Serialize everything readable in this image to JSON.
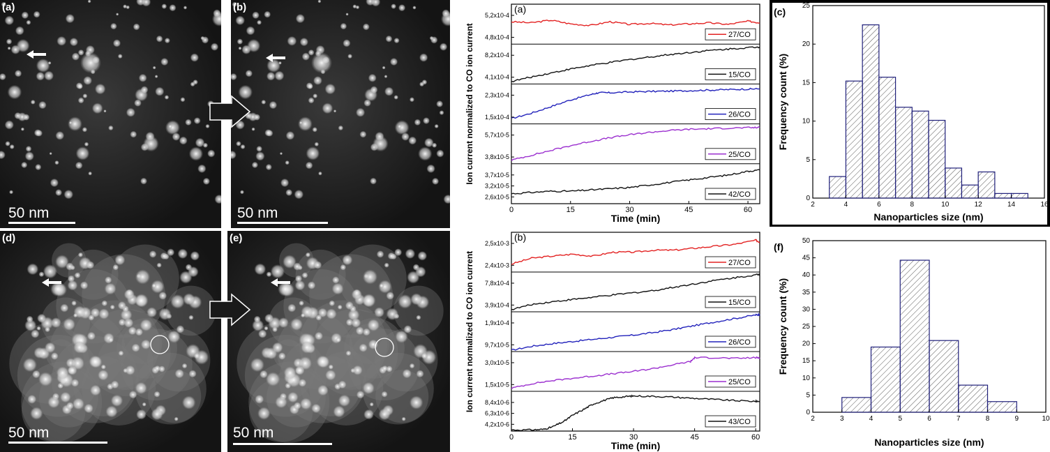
{
  "panels": {
    "a": {
      "label": "(a)",
      "scale": "50 nm"
    },
    "b": {
      "label": "(b)",
      "scale": "50 nm"
    },
    "d": {
      "label": "(d)",
      "scale": "50 nm"
    },
    "e": {
      "label": "(e)",
      "scale": "50 nm"
    }
  },
  "chart_data": [
    {
      "type": "line",
      "panel_label": "(a)",
      "xlabel": "Time (min)",
      "ylabel": "Ion current normalized to CO ion current",
      "xlim": [
        0,
        63
      ],
      "xticks": [
        "0",
        "15",
        "30",
        "45",
        "60"
      ],
      "series": [
        {
          "name": "27/CO",
          "color": "#e32222",
          "yticks": [
            "5,2x10-4",
            "4,8x10-4"
          ],
          "x": [
            0,
            5,
            10,
            15,
            20,
            25,
            30,
            35,
            40,
            45,
            50,
            55,
            60,
            63
          ],
          "y": [
            5.02,
            5.0,
            5.05,
            4.98,
            4.95,
            5.02,
            4.97,
            4.99,
            4.96,
            4.98,
            5.0,
            4.97,
            5.03,
            5.0
          ],
          "ylim": [
            4.6,
            5.35
          ]
        },
        {
          "name": "15/CO",
          "color": "#111111",
          "yticks": [
            "8,2x10-4",
            "4,1x10-4"
          ],
          "x": [
            0,
            5,
            10,
            15,
            20,
            25,
            30,
            35,
            40,
            45,
            50,
            55,
            60,
            63
          ],
          "y": [
            4.1,
            5.0,
            5.8,
            6.6,
            7.3,
            7.9,
            8.5,
            9.0,
            9.5,
            9.9,
            10.3,
            10.6,
            10.9,
            11.0
          ],
          "ylim": [
            3.6,
            11.6
          ]
        },
        {
          "name": "26/CO",
          "color": "#2222bb",
          "yticks": [
            "2,3x10-4",
            "1,5x10-4"
          ],
          "x": [
            0,
            5,
            10,
            15,
            20,
            22,
            25,
            30,
            35,
            40,
            45,
            50,
            55,
            60,
            63
          ],
          "y": [
            1.45,
            1.65,
            1.9,
            2.15,
            2.35,
            2.42,
            2.42,
            2.45,
            2.47,
            2.48,
            2.5,
            2.52,
            2.54,
            2.56,
            2.57
          ],
          "ylim": [
            1.25,
            2.75
          ]
        },
        {
          "name": "25/CO",
          "color": "#9b2fcf",
          "yticks": [
            "5,7x10-5",
            "3,8x10-5"
          ],
          "x": [
            0,
            5,
            10,
            15,
            20,
            25,
            30,
            35,
            40,
            45,
            50,
            55,
            60,
            63
          ],
          "y": [
            3.6,
            4.0,
            4.4,
            4.8,
            5.15,
            5.45,
            5.7,
            5.9,
            6.05,
            6.15,
            6.2,
            6.25,
            6.28,
            6.3
          ],
          "ylim": [
            3.3,
            6.6
          ]
        },
        {
          "name": "42/CO",
          "color": "#111111",
          "yticks": [
            "3,7x10-5",
            "3,2x10-5",
            "2,6x10-5"
          ],
          "x": [
            0,
            5,
            10,
            15,
            20,
            25,
            30,
            35,
            40,
            45,
            50,
            55,
            60,
            63
          ],
          "y": [
            2.9,
            2.95,
            3.0,
            3.0,
            3.05,
            3.1,
            3.15,
            3.25,
            3.35,
            3.45,
            3.55,
            3.65,
            3.8,
            3.85
          ],
          "ylim": [
            2.5,
            4.1
          ]
        }
      ]
    },
    {
      "type": "line",
      "panel_label": "(b)",
      "xlabel": "Time (min)",
      "ylabel": "Ion current normalized to CO ion current",
      "xlim": [
        0,
        61
      ],
      "xticks": [
        "0",
        "15",
        "30",
        "45",
        "60"
      ],
      "series": [
        {
          "name": "27/CO",
          "color": "#e32222",
          "yticks": [
            "2,5x10-3",
            "2,4x10-3"
          ],
          "x": [
            0,
            5,
            10,
            15,
            20,
            25,
            30,
            35,
            40,
            45,
            50,
            55,
            60,
            61
          ],
          "y": [
            2.4,
            2.43,
            2.44,
            2.45,
            2.44,
            2.46,
            2.46,
            2.47,
            2.47,
            2.48,
            2.49,
            2.5,
            2.52,
            2.51
          ],
          "ylim": [
            2.36,
            2.56
          ]
        },
        {
          "name": "15/CO",
          "color": "#111111",
          "yticks": [
            "7,8x10-4",
            "3,9x10-4"
          ],
          "x": [
            0,
            5,
            10,
            15,
            20,
            25,
            30,
            35,
            40,
            45,
            50,
            55,
            60,
            61
          ],
          "y": [
            2.9,
            3.8,
            4.3,
            4.7,
            5.1,
            5.5,
            5.9,
            6.3,
            6.9,
            7.5,
            8.1,
            8.6,
            9.1,
            9.2
          ],
          "ylim": [
            2.5,
            9.6
          ]
        },
        {
          "name": "26/CO",
          "color": "#2222bb",
          "yticks": [
            "1,9x10-4",
            "9,7x10-5"
          ],
          "x": [
            0,
            5,
            10,
            15,
            20,
            25,
            30,
            35,
            40,
            45,
            50,
            55,
            60,
            61
          ],
          "y": [
            6.5,
            8.0,
            9.0,
            9.8,
            10.6,
            11.4,
            12.2,
            13.2,
            14.4,
            15.8,
            17.2,
            18.5,
            19.8,
            20.0
          ],
          "ylim": [
            6.0,
            21.0
          ]
        },
        {
          "name": "25/CO",
          "color": "#9b2fcf",
          "yticks": [
            "3,0x10-5",
            "1,5x10-5"
          ],
          "x": [
            0,
            5,
            10,
            15,
            20,
            25,
            30,
            35,
            40,
            44,
            45,
            50,
            55,
            60,
            61
          ],
          "y": [
            0.9,
            1.2,
            1.4,
            1.55,
            1.7,
            1.85,
            2.0,
            2.2,
            2.45,
            2.65,
            2.9,
            2.9,
            2.85,
            2.9,
            2.9
          ],
          "ylim": [
            0.7,
            3.3
          ]
        },
        {
          "name": "43/CO",
          "color": "#111111",
          "yticks": [
            "8,4x10-6",
            "6,3x10-6",
            "4,2x10-6"
          ],
          "x": [
            0,
            5,
            8,
            10,
            13,
            15,
            18,
            20,
            23,
            25,
            28,
            30,
            35,
            40,
            45,
            50,
            55,
            60,
            61
          ],
          "y": [
            3.0,
            3.0,
            3.1,
            3.5,
            4.5,
            5.5,
            6.6,
            7.4,
            8.1,
            8.5,
            8.7,
            8.8,
            8.75,
            8.6,
            8.4,
            8.2,
            8.0,
            7.9,
            7.9
          ],
          "ylim": [
            2.8,
            9.6
          ]
        }
      ]
    },
    {
      "type": "bar",
      "panel_label": "(c)",
      "xlabel": "Nanoparticles size (nm)",
      "ylabel": "Frequency count (%)",
      "xlim": [
        2,
        16
      ],
      "ylim": [
        0,
        25
      ],
      "xticks": [
        "2",
        "4",
        "6",
        "8",
        "10",
        "12",
        "14",
        "16"
      ],
      "yticks": [
        "0",
        "5",
        "10",
        "15",
        "20",
        "25"
      ],
      "bins": [
        [
          3,
          4
        ],
        [
          4,
          5
        ],
        [
          5,
          6
        ],
        [
          6,
          7
        ],
        [
          7,
          8
        ],
        [
          8,
          9
        ],
        [
          9,
          10
        ],
        [
          10,
          11
        ],
        [
          11,
          12
        ],
        [
          12,
          13
        ],
        [
          13,
          14
        ],
        [
          14,
          15
        ]
      ],
      "values": [
        2.8,
        15.2,
        22.5,
        15.7,
        11.8,
        11.3,
        10.1,
        3.9,
        1.7,
        3.4,
        0.6,
        0.6
      ],
      "fill": "hatched",
      "extra_text": "Nanoparticles size (nm)"
    },
    {
      "type": "bar",
      "panel_label": "(f)",
      "xlabel": "Nanoparticles size (nm)",
      "ylabel": "Frequency count (%)",
      "xlim": [
        2,
        10
      ],
      "ylim": [
        0,
        50
      ],
      "xticks": [
        "2",
        "3",
        "4",
        "5",
        "6",
        "7",
        "8",
        "9",
        "10"
      ],
      "yticks": [
        "0",
        "5",
        "10",
        "15",
        "20",
        "25",
        "30",
        "35",
        "40",
        "45",
        "50"
      ],
      "bins": [
        [
          3,
          4
        ],
        [
          4,
          5
        ],
        [
          5,
          6
        ],
        [
          6,
          7
        ],
        [
          7,
          8
        ],
        [
          8,
          9
        ]
      ],
      "values": [
        4.3,
        19.0,
        44.3,
        20.9,
        7.9,
        3.1
      ],
      "fill": "hatched"
    }
  ]
}
